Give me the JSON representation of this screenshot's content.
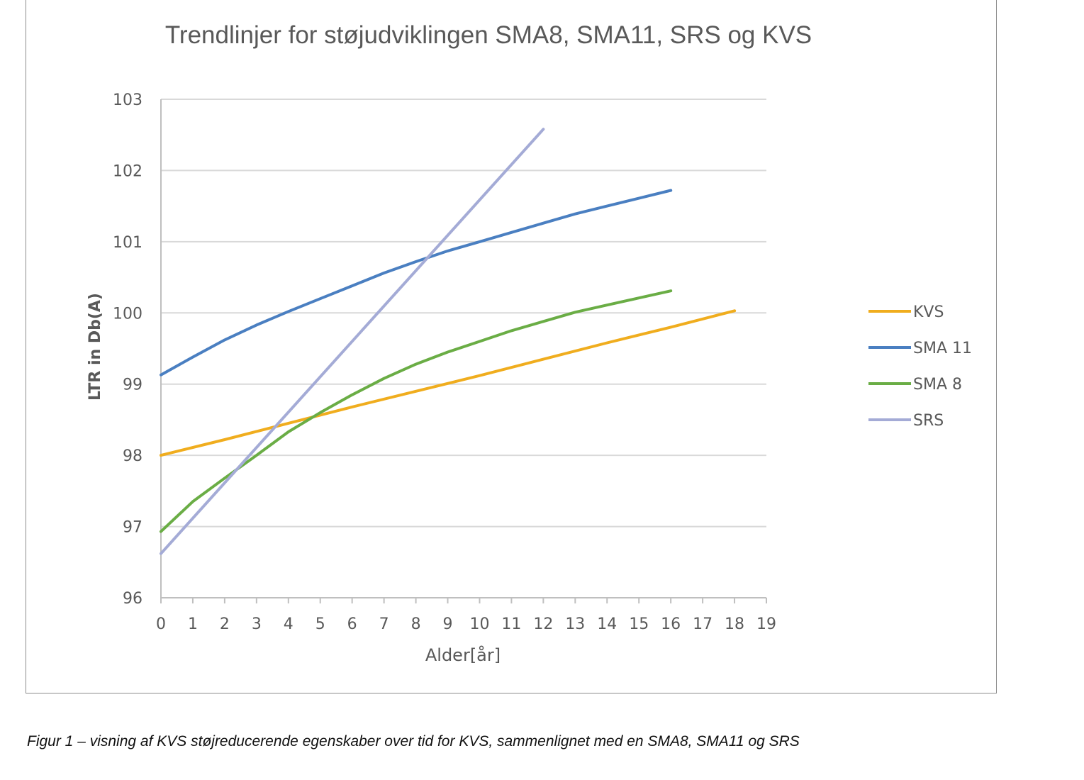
{
  "chart_data": {
    "type": "line",
    "title": "Trendlinjer for støjudviklingen SMA8, SMA11, SRS og KVS",
    "xlabel": "Alder[år]",
    "ylabel": "LTR in Db(A)",
    "xlim": [
      0,
      19
    ],
    "ylim": [
      96,
      103
    ],
    "x_ticks": [
      "0",
      "1",
      "2",
      "3",
      "4",
      "5",
      "6",
      "7",
      "8",
      "9",
      "10",
      "11",
      "12",
      "13",
      "14",
      "15",
      "16",
      "17",
      "18",
      "19"
    ],
    "y_ticks": [
      "96",
      "97",
      "98",
      "99",
      "100",
      "101",
      "102",
      "103"
    ],
    "grid": true,
    "legend_position": "right",
    "series": [
      {
        "name": "KVS",
        "color": "#f0ad1e",
        "x": [
          0,
          2,
          4,
          6,
          8,
          10,
          12,
          14,
          16,
          18
        ],
        "y": [
          98.0,
          98.22,
          98.45,
          98.68,
          98.9,
          99.12,
          99.35,
          99.58,
          99.8,
          100.03
        ]
      },
      {
        "name": "SMA 11",
        "color": "#4a7fc1",
        "x": [
          0,
          1,
          2,
          3,
          4,
          5,
          6,
          7,
          8,
          9,
          10,
          11,
          12,
          13,
          14,
          15,
          16
        ],
        "y": [
          99.13,
          99.38,
          99.62,
          99.83,
          100.02,
          100.2,
          100.38,
          100.56,
          100.72,
          100.87,
          101.0,
          101.13,
          101.26,
          101.39,
          101.5,
          101.61,
          101.72
        ]
      },
      {
        "name": "SMA 8",
        "color": "#6aad45",
        "x": [
          0,
          1,
          2,
          3,
          4,
          5,
          6,
          7,
          8,
          9,
          10,
          11,
          12,
          13,
          14,
          15,
          16
        ],
        "y": [
          96.93,
          97.35,
          97.68,
          98.0,
          98.33,
          98.6,
          98.85,
          99.08,
          99.28,
          99.45,
          99.6,
          99.75,
          99.88,
          100.01,
          100.11,
          100.21,
          100.31
        ]
      },
      {
        "name": "SRS",
        "color": "#a4abd6",
        "x": [
          0,
          12
        ],
        "y": [
          96.62,
          102.58
        ]
      }
    ]
  },
  "caption": "Figur 1 – visning af KVS støjreducerende egenskaber over tid for KVS, sammenlignet med en SMA8, SMA11 og SRS"
}
